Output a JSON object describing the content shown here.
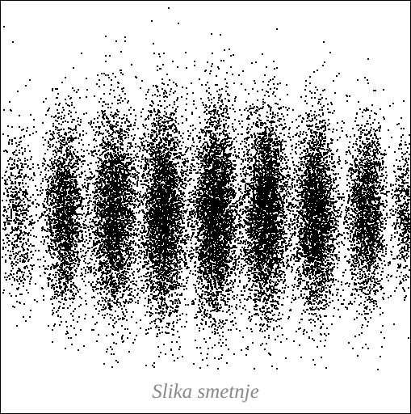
{
  "caption": "Slika smetnje"
}
